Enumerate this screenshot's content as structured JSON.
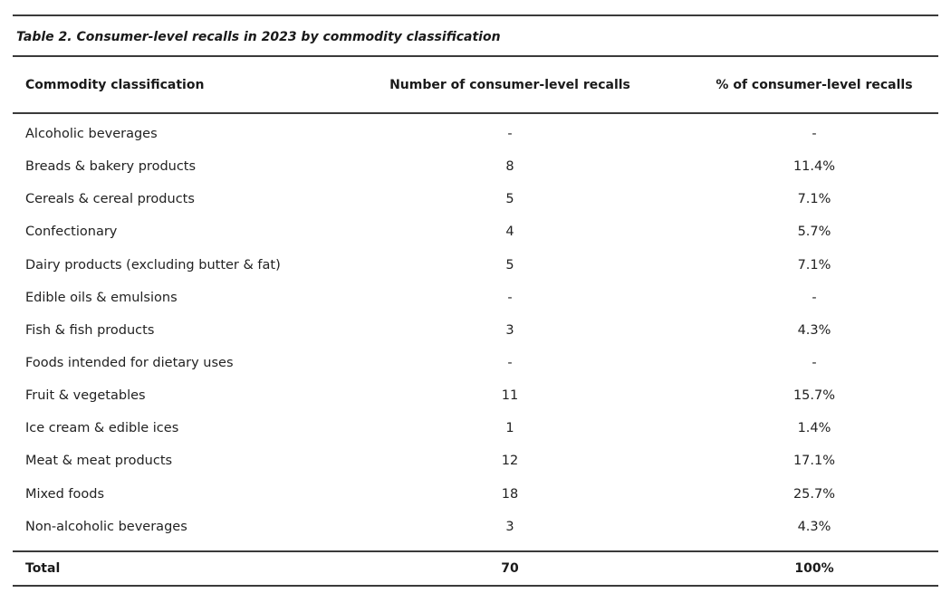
{
  "caption": "Table 2. Consumer-level recalls in 2023 by commodity classification",
  "columns": {
    "commodity": "Commodity classification",
    "number": "Number of consumer-level recalls",
    "percent": "% of consumer-level recalls"
  },
  "rows": [
    {
      "commodity": "Alcoholic beverages",
      "number": "-",
      "percent": "-"
    },
    {
      "commodity": "Breads & bakery products",
      "number": "8",
      "percent": "11.4%"
    },
    {
      "commodity": "Cereals & cereal products",
      "number": "5",
      "percent": "7.1%"
    },
    {
      "commodity": "Confectionary",
      "number": "4",
      "percent": "5.7%"
    },
    {
      "commodity": "Dairy products (excluding butter & fat)",
      "number": "5",
      "percent": "7.1%"
    },
    {
      "commodity": "Edible oils & emulsions",
      "number": "-",
      "percent": "-"
    },
    {
      "commodity": "Fish & fish products",
      "number": "3",
      "percent": "4.3%"
    },
    {
      "commodity": "Foods intended for dietary uses",
      "number": "-",
      "percent": "-"
    },
    {
      "commodity": "Fruit & vegetables",
      "number": "11",
      "percent": "15.7%"
    },
    {
      "commodity": "Ice cream & edible ices",
      "number": "1",
      "percent": "1.4%"
    },
    {
      "commodity": "Meat & meat products",
      "number": "12",
      "percent": "17.1%"
    },
    {
      "commodity": "Mixed foods",
      "number": "18",
      "percent": "25.7%"
    },
    {
      "commodity": "Non-alcoholic beverages",
      "number": "3",
      "percent": "4.3%"
    }
  ],
  "total": {
    "label": "Total",
    "number": "70",
    "percent": "100%"
  }
}
